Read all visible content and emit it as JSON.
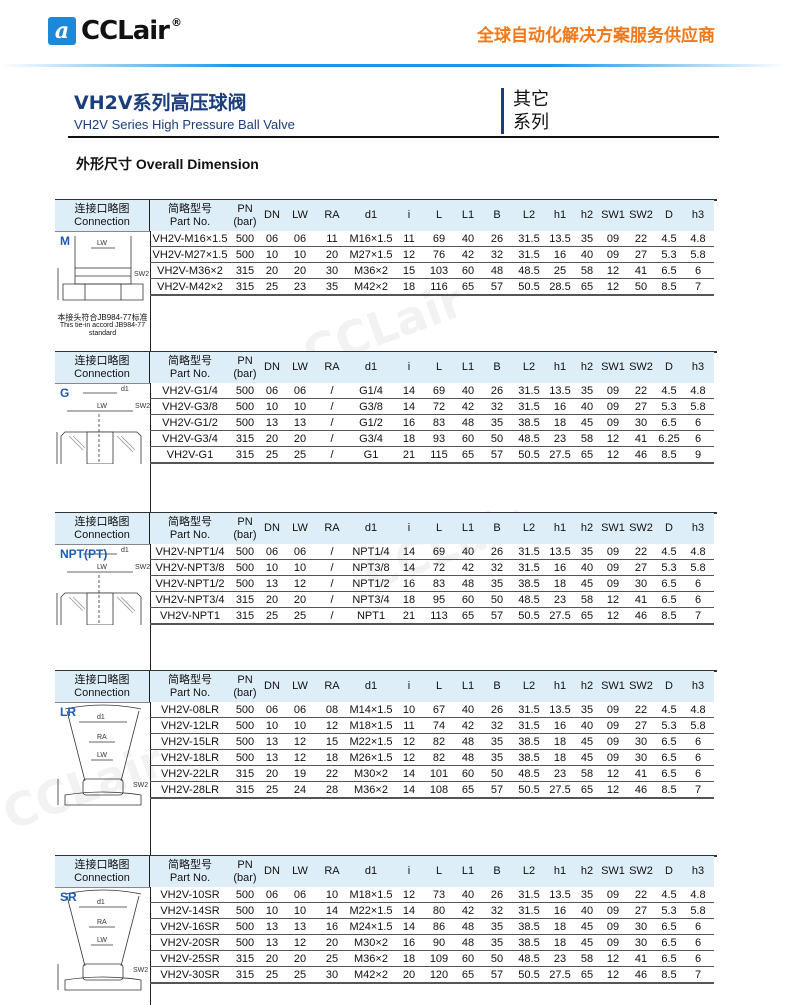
{
  "header": {
    "logo_text": "CCLair",
    "logo_mark": "a",
    "slogan": "全球自动化解决方案服务供应商"
  },
  "title": {
    "cn": "VH2V系列高压球阀",
    "en": "VH2V Series High Pressure Ball Valve",
    "series_line1": "其它",
    "series_line2": "系列"
  },
  "section_title": "外形尺寸 Overall Dimension",
  "columns": {
    "connection_cn": "连接口略图",
    "connection_en": "Connection",
    "part_cn": "简略型号",
    "part_en": "Part No.",
    "pn": "PN",
    "pn_unit": "(bar)",
    "dims": [
      "DN",
      "LW",
      "RA",
      "d1",
      "i",
      "L",
      "L1",
      "B",
      "L2",
      "h1",
      "h2",
      "SW1",
      "SW2",
      "D",
      "h3"
    ]
  },
  "tables": [
    {
      "type": "M",
      "note_cn": "本接头符合JB984-77标准",
      "note_en": "This tie-in accord JB984-77 standard",
      "rows": [
        [
          "VH2V-M16×1.5",
          "500",
          "06",
          "06",
          "11",
          "M16×1.5",
          "11",
          "69",
          "40",
          "26",
          "31.5",
          "13.5",
          "35",
          "09",
          "22",
          "4.5",
          "4.8"
        ],
        [
          "VH2V-M27×1.5",
          "500",
          "10",
          "10",
          "20",
          "M27×1.5",
          "12",
          "76",
          "42",
          "32",
          "31.5",
          "16",
          "40",
          "09",
          "27",
          "5.3",
          "5.8"
        ],
        [
          "VH2V-M36×2",
          "315",
          "20",
          "20",
          "30",
          "M36×2",
          "15",
          "103",
          "60",
          "48",
          "48.5",
          "25",
          "58",
          "12",
          "41",
          "6.5",
          "6"
        ],
        [
          "VH2V-M42×2",
          "315",
          "25",
          "23",
          "35",
          "M42×2",
          "18",
          "116",
          "65",
          "57",
          "50.5",
          "28.5",
          "65",
          "12",
          "50",
          "8.5",
          "7"
        ]
      ]
    },
    {
      "type": "G",
      "rows": [
        [
          "VH2V-G1/4",
          "500",
          "06",
          "06",
          "/",
          "G1/4",
          "14",
          "69",
          "40",
          "26",
          "31.5",
          "13.5",
          "35",
          "09",
          "22",
          "4.5",
          "4.8"
        ],
        [
          "VH2V-G3/8",
          "500",
          "10",
          "10",
          "/",
          "G3/8",
          "14",
          "72",
          "42",
          "32",
          "31.5",
          "16",
          "40",
          "09",
          "27",
          "5.3",
          "5.8"
        ],
        [
          "VH2V-G1/2",
          "500",
          "13",
          "13",
          "/",
          "G1/2",
          "16",
          "83",
          "48",
          "35",
          "38.5",
          "18",
          "45",
          "09",
          "30",
          "6.5",
          "6"
        ],
        [
          "VH2V-G3/4",
          "315",
          "20",
          "20",
          "/",
          "G3/4",
          "18",
          "93",
          "60",
          "50",
          "48.5",
          "23",
          "58",
          "12",
          "41",
          "6.25",
          "6"
        ],
        [
          "VH2V-G1",
          "315",
          "25",
          "25",
          "/",
          "G1",
          "21",
          "115",
          "65",
          "57",
          "50.5",
          "27.5",
          "65",
          "12",
          "46",
          "8.5",
          "9"
        ]
      ]
    },
    {
      "type": "NPT(PT)",
      "rows": [
        [
          "VH2V-NPT1/4",
          "500",
          "06",
          "06",
          "/",
          "NPT1/4",
          "14",
          "69",
          "40",
          "26",
          "31.5",
          "13.5",
          "35",
          "09",
          "22",
          "4.5",
          "4.8"
        ],
        [
          "VH2V-NPT3/8",
          "500",
          "10",
          "10",
          "/",
          "NPT3/8",
          "14",
          "72",
          "42",
          "32",
          "31.5",
          "16",
          "40",
          "09",
          "27",
          "5.3",
          "5.8"
        ],
        [
          "VH2V-NPT1/2",
          "500",
          "13",
          "12",
          "/",
          "NPT1/2",
          "16",
          "83",
          "48",
          "35",
          "38.5",
          "18",
          "45",
          "09",
          "30",
          "6.5",
          "6"
        ],
        [
          "VH2V-NPT3/4",
          "315",
          "20",
          "20",
          "/",
          "NPT3/4",
          "18",
          "95",
          "60",
          "50",
          "48.5",
          "23",
          "58",
          "12",
          "41",
          "6.5",
          "6"
        ],
        [
          "VH2V-NPT1",
          "315",
          "25",
          "25",
          "/",
          "NPT1",
          "21",
          "113",
          "65",
          "57",
          "50.5",
          "27.5",
          "65",
          "12",
          "46",
          "8.5",
          "7"
        ]
      ]
    },
    {
      "type": "LR",
      "rows": [
        [
          "VH2V-08LR",
          "500",
          "06",
          "06",
          "08",
          "M14×1.5",
          "10",
          "67",
          "40",
          "26",
          "31.5",
          "13.5",
          "35",
          "09",
          "22",
          "4.5",
          "4.8"
        ],
        [
          "VH2V-12LR",
          "500",
          "10",
          "10",
          "12",
          "M18×1.5",
          "11",
          "74",
          "42",
          "32",
          "31.5",
          "16",
          "40",
          "09",
          "27",
          "5.3",
          "5.8"
        ],
        [
          "VH2V-15LR",
          "500",
          "13",
          "12",
          "15",
          "M22×1.5",
          "12",
          "82",
          "48",
          "35",
          "38.5",
          "18",
          "45",
          "09",
          "30",
          "6.5",
          "6"
        ],
        [
          "VH2V-18LR",
          "500",
          "13",
          "12",
          "18",
          "M26×1.5",
          "12",
          "82",
          "48",
          "35",
          "38.5",
          "18",
          "45",
          "09",
          "30",
          "6.5",
          "6"
        ],
        [
          "VH2V-22LR",
          "315",
          "20",
          "19",
          "22",
          "M30×2",
          "14",
          "101",
          "60",
          "50",
          "48.5",
          "23",
          "58",
          "12",
          "41",
          "6.5",
          "6"
        ],
        [
          "VH2V-28LR",
          "315",
          "25",
          "24",
          "28",
          "M36×2",
          "14",
          "108",
          "65",
          "57",
          "50.5",
          "27.5",
          "65",
          "12",
          "46",
          "8.5",
          "7"
        ]
      ]
    },
    {
      "type": "SR",
      "rows": [
        [
          "VH2V-10SR",
          "500",
          "06",
          "06",
          "10",
          "M18×1.5",
          "12",
          "73",
          "40",
          "26",
          "31.5",
          "13.5",
          "35",
          "09",
          "22",
          "4.5",
          "4.8"
        ],
        [
          "VH2V-14SR",
          "500",
          "10",
          "10",
          "14",
          "M22×1.5",
          "14",
          "80",
          "42",
          "32",
          "31.5",
          "16",
          "40",
          "09",
          "27",
          "5.3",
          "5.8"
        ],
        [
          "VH2V-16SR",
          "500",
          "13",
          "13",
          "16",
          "M24×1.5",
          "14",
          "86",
          "48",
          "35",
          "38.5",
          "18",
          "45",
          "09",
          "30",
          "6.5",
          "6"
        ],
        [
          "VH2V-20SR",
          "500",
          "13",
          "12",
          "20",
          "M30×2",
          "16",
          "90",
          "48",
          "35",
          "38.5",
          "18",
          "45",
          "09",
          "30",
          "6.5",
          "6"
        ],
        [
          "VH2V-25SR",
          "315",
          "20",
          "20",
          "25",
          "M36×2",
          "18",
          "109",
          "60",
          "50",
          "48.5",
          "23",
          "58",
          "12",
          "41",
          "6.5",
          "6"
        ],
        [
          "VH2V-30SR",
          "315",
          "25",
          "25",
          "30",
          "M42×2",
          "20",
          "120",
          "65",
          "57",
          "50.5",
          "27.5",
          "65",
          "12",
          "46",
          "8.5",
          "7"
        ]
      ]
    }
  ],
  "diagram_labels": {
    "d1": "d1",
    "lw": "LW",
    "ra": "RA",
    "sw2": "SW2"
  },
  "colors": {
    "brand_blue": "#1e88d8",
    "title_blue": "#1a3d7c",
    "slogan_orange": "#f07818",
    "header_bg": "#deeef8"
  }
}
